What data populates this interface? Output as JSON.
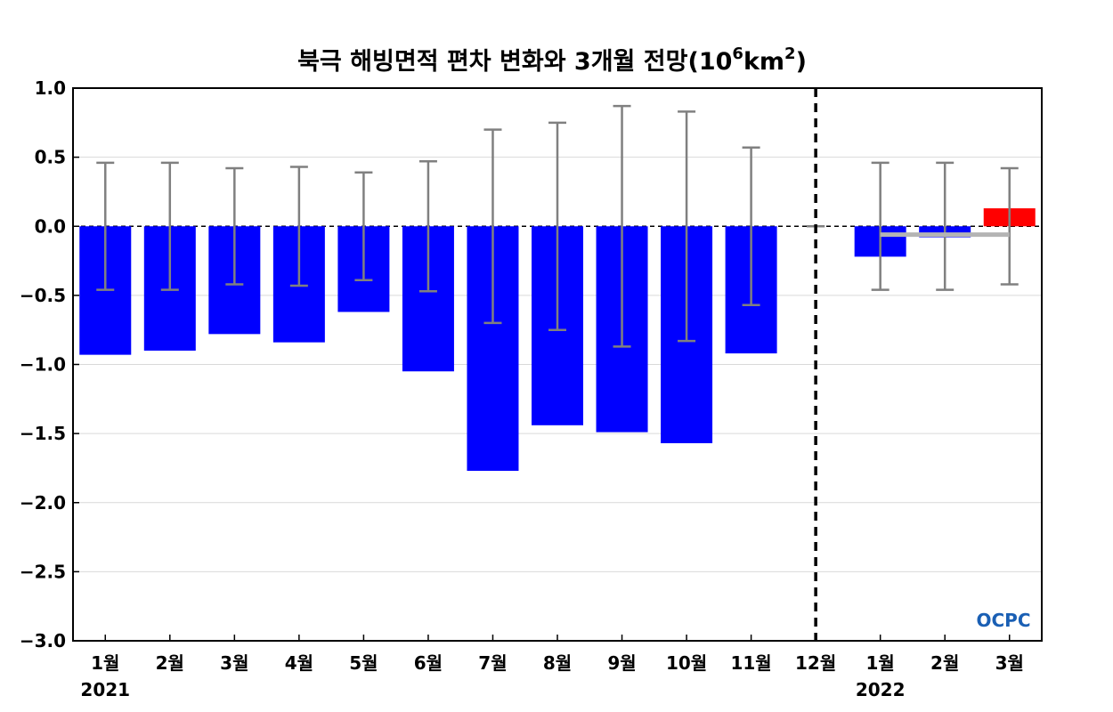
{
  "chart_data": {
    "type": "bar",
    "title": "북극 해빙면적 편차 변화와 3개월 전망(10",
    "title_sup1": "6",
    "title_mid": "km",
    "title_sup2": "2",
    "title_end": ")",
    "ylim": [
      -3.0,
      1.0
    ],
    "yticks": [
      "1.0",
      "0.5",
      "0.0",
      "−0.5",
      "−1.0",
      "−1.5",
      "−2.0",
      "−2.5",
      "−3.0"
    ],
    "ytick_values": [
      1.0,
      0.5,
      0.0,
      -0.5,
      -1.0,
      -1.5,
      -2.0,
      -2.5,
      -3.0
    ],
    "categories": [
      "1월",
      "2월",
      "3월",
      "4월",
      "5월",
      "6월",
      "7월",
      "8월",
      "9월",
      "10월",
      "11월",
      "12월",
      "1월",
      "2월",
      "3월"
    ],
    "year_labels": [
      "2021",
      "2022"
    ],
    "values": [
      -0.93,
      -0.9,
      -0.78,
      -0.84,
      -0.62,
      -1.05,
      -1.77,
      -1.44,
      -1.49,
      -1.57,
      -0.92,
      null,
      -0.22,
      -0.08,
      0.13
    ],
    "error_bar_upper": [
      0.46,
      0.46,
      0.42,
      0.43,
      0.39,
      0.47,
      0.7,
      0.75,
      0.87,
      0.83,
      0.57,
      0.0,
      0.46,
      0.46,
      0.42
    ],
    "error_bar_lower": [
      -0.46,
      -0.46,
      -0.42,
      -0.43,
      -0.39,
      -0.47,
      -0.7,
      -0.75,
      -0.87,
      -0.83,
      -0.57,
      0.0,
      -0.46,
      -0.46,
      -0.42
    ],
    "forecast_reference": -0.06,
    "colors": {
      "negative": "#0000ff",
      "positive": "#ff0000",
      "error_bar": "#808080",
      "reference": "#b4b4b4",
      "grid": "#d9d9d9"
    },
    "grid": true,
    "logo_text": "OCPC"
  }
}
